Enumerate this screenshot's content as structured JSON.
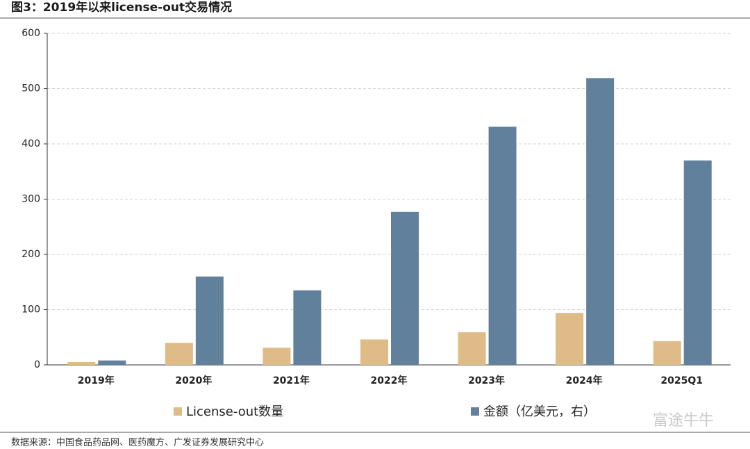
{
  "chart_data": {
    "type": "bar",
    "title": "图3：2019年以来license-out交易情况",
    "categories": [
      "2019年",
      "2020年",
      "2021年",
      "2022年",
      "2023年",
      "2024年",
      "2025Q1"
    ],
    "series": [
      {
        "name": "License-out数量",
        "color": "#dfbb88",
        "values": [
          5,
          40,
          31,
          46,
          59,
          94,
          43
        ]
      },
      {
        "name": "金额（亿美元，右）",
        "color": "#61809b",
        "values": [
          8,
          160,
          135,
          277,
          431,
          519,
          370
        ]
      }
    ],
    "ylim": [
      0,
      600
    ],
    "yticks": [
      0,
      100,
      200,
      300,
      400,
      500,
      600
    ],
    "grid": true,
    "source": "数据来源：中国食品药品网、医药魔方、广发证券发展研究中心",
    "watermark": "富途牛牛"
  }
}
